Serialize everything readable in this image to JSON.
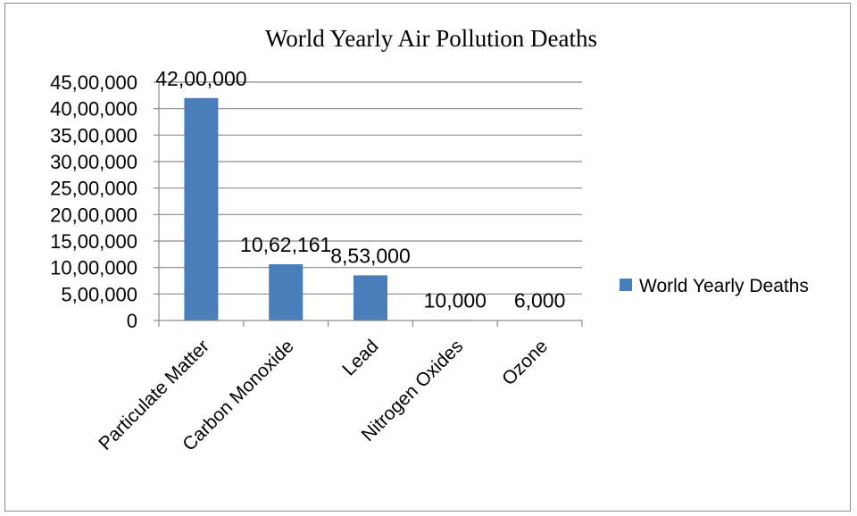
{
  "chart_data": {
    "type": "bar",
    "title": "World Yearly Air Pollution Deaths",
    "categories": [
      "Particulate Matter",
      "Carbon Monoxide",
      "Lead",
      "Nitrogen Oxides",
      "Ozone"
    ],
    "series": [
      {
        "name": "World Yearly Deaths",
        "values": [
          4200000,
          1062161,
          853000,
          10000,
          6000
        ],
        "data_labels": [
          "42,00,000",
          "10,62,161",
          "8,53,000",
          "10,000",
          "6,000"
        ],
        "color": "#4a7ebb"
      }
    ],
    "ylim": [
      0,
      4500000
    ],
    "y_ticks": [
      0,
      500000,
      1000000,
      1500000,
      2000000,
      2500000,
      3000000,
      3500000,
      4000000,
      4500000
    ],
    "y_tick_labels": [
      "0",
      "5,00,000",
      "10,00,000",
      "15,00,000",
      "20,00,000",
      "25,00,000",
      "30,00,000",
      "35,00,000",
      "40,00,000",
      "45,00,000"
    ],
    "grid": true,
    "legend_position": "right",
    "gridline_color": "#8c8c8c"
  }
}
